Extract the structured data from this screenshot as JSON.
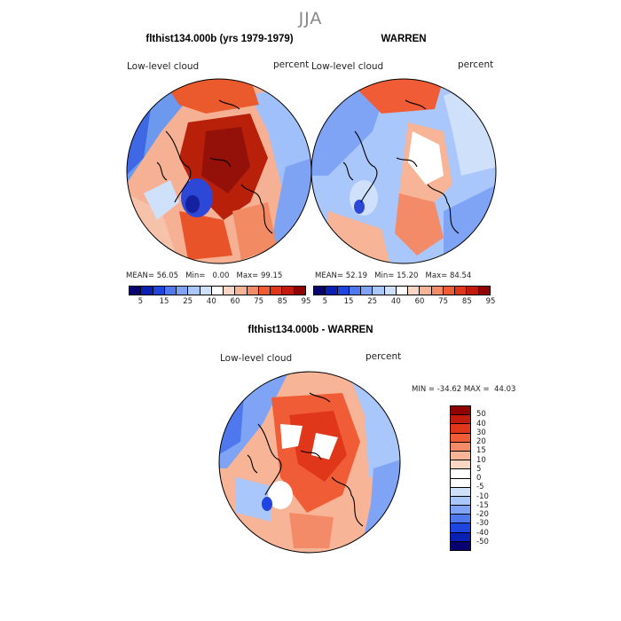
{
  "season": "JJA",
  "panels": [
    {
      "title": "flthist134.000b (yrs 1979-1979)",
      "var_label": "Low-level cloud",
      "units": "percent",
      "mean": "56.05",
      "min": "0.00",
      "max": "99.15"
    },
    {
      "title": "WARREN",
      "var_label": "Low-level cloud",
      "units": "percent",
      "mean": "52.19",
      "min": "15.20",
      "max": "84.54"
    }
  ],
  "diff": {
    "title": "flthist134.000b - WARREN",
    "var_label": "Low-level cloud",
    "units": "percent",
    "min": "-34.62",
    "max": "44.03"
  },
  "stat_labels": {
    "mean": "MEAN=",
    "min": "Min=",
    "max": "Max=",
    "min_upper": "MIN =",
    "max_upper": "MAX ="
  },
  "colorbar_abs": {
    "ticks": [
      "5",
      "15",
      "25",
      "40",
      "60",
      "75",
      "85",
      "95"
    ],
    "colors": [
      "#08006e",
      "#0a1fb3",
      "#1f45e0",
      "#4f78ef",
      "#7fa4f5",
      "#a9c7fb",
      "#cfe0fb",
      "#ffffff",
      "#fbd6c2",
      "#f7b497",
      "#f48b68",
      "#ef5c35",
      "#e0361a",
      "#c01b0c",
      "#900303"
    ]
  },
  "colorbar_diff": {
    "ticks": [
      "50",
      "40",
      "30",
      "20",
      "15",
      "10",
      "5",
      "0",
      "-5",
      "-10",
      "-15",
      "-20",
      "-30",
      "-40",
      "-50"
    ],
    "colors": [
      "#900303",
      "#c01b0c",
      "#e0361a",
      "#ef5c35",
      "#f48b68",
      "#f7b497",
      "#fbd6c2",
      "#ffffff",
      "#ffffff",
      "#cfe0fb",
      "#a9c7fb",
      "#7fa4f5",
      "#4f78ef",
      "#1f45e0",
      "#0a1fb3",
      "#08006e"
    ]
  },
  "chart_data": [
    {
      "type": "heatmap",
      "projection": "polar stereographic (north pole)",
      "title": "flthist134.000b (yrs 1979-1979)",
      "variable": "Low-level cloud",
      "units": "percent",
      "stats": {
        "mean": 56.05,
        "min": 0.0,
        "max": 99.15
      },
      "contour_levels": [
        5,
        15,
        25,
        40,
        60,
        75,
        85,
        95
      ]
    },
    {
      "type": "heatmap",
      "projection": "polar stereographic (north pole)",
      "title": "WARREN",
      "variable": "Low-level cloud",
      "units": "percent",
      "stats": {
        "mean": 52.19,
        "min": 15.2,
        "max": 84.54
      },
      "contour_levels": [
        5,
        15,
        25,
        40,
        60,
        75,
        85,
        95
      ]
    },
    {
      "type": "heatmap",
      "projection": "polar stereographic (north pole)",
      "title": "flthist134.000b - WARREN",
      "variable": "Low-level cloud",
      "units": "percent",
      "stats": {
        "min": -34.62,
        "max": 44.03
      },
      "contour_levels": [
        -50,
        -40,
        -30,
        -20,
        -15,
        -10,
        -5,
        0,
        5,
        10,
        15,
        20,
        30,
        40,
        50
      ]
    }
  ]
}
